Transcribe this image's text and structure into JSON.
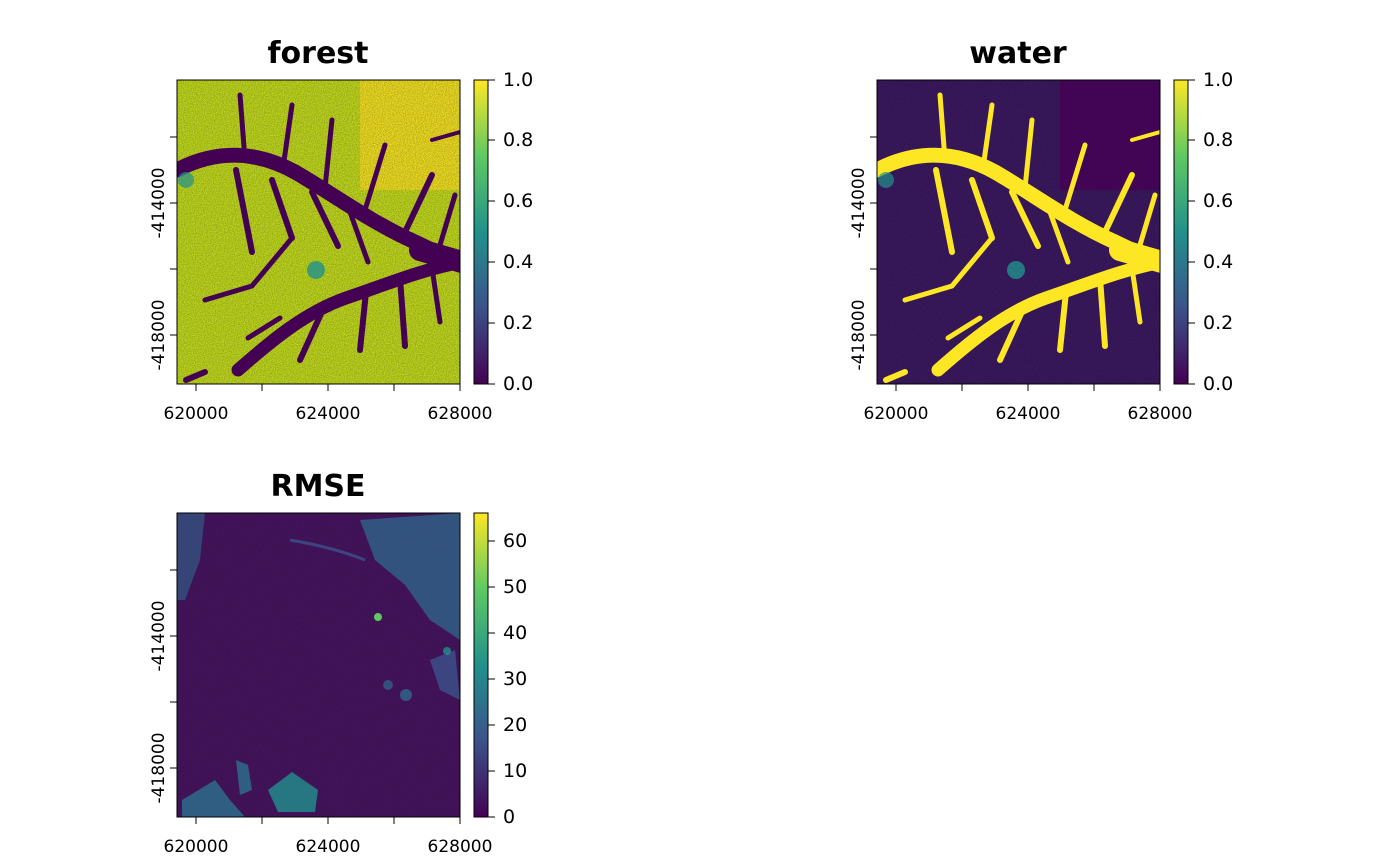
{
  "chart_data": [
    {
      "type": "heatmap",
      "title": "forest",
      "x_ticks": [
        620000,
        624000,
        628000
      ],
      "y_ticks": [
        -414000,
        -418000
      ],
      "xlim": [
        619400,
        628000
      ],
      "ylim": [
        -419800,
        -410500
      ],
      "colorbar": {
        "min": 0.0,
        "max": 1.0,
        "ticks": [
          "0.0",
          "0.2",
          "0.4",
          "0.6",
          "0.8",
          "1.0"
        ]
      },
      "colormap": "viridis"
    },
    {
      "type": "heatmap",
      "title": "water",
      "x_ticks": [
        620000,
        624000,
        628000
      ],
      "y_ticks": [
        -414000,
        -418000
      ],
      "xlim": [
        619400,
        628000
      ],
      "ylim": [
        -419800,
        -410500
      ],
      "colorbar": {
        "min": 0.0,
        "max": 1.0,
        "ticks": [
          "0.0",
          "0.2",
          "0.4",
          "0.6",
          "0.8",
          "1.0"
        ]
      },
      "colormap": "viridis"
    },
    {
      "type": "heatmap",
      "title": "RMSE",
      "x_ticks": [
        620000,
        624000,
        628000
      ],
      "y_ticks": [
        -414000,
        -418000
      ],
      "xlim": [
        619400,
        628000
      ],
      "ylim": [
        -419800,
        -410500
      ],
      "colorbar": {
        "min": 0,
        "max": 66,
        "ticks": [
          "0",
          "10",
          "20",
          "30",
          "40",
          "50",
          "60"
        ]
      },
      "colormap": "viridis"
    }
  ],
  "colors": {
    "viridis_0": "#440154",
    "viridis_25": "#3b528b",
    "viridis_50": "#21918c",
    "viridis_75": "#5ec962",
    "viridis_100": "#fde725"
  }
}
